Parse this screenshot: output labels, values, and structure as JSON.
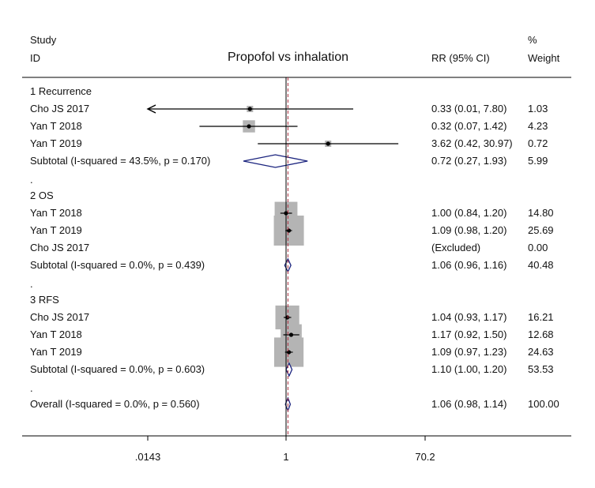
{
  "header": {
    "study_label": "Study",
    "id_label": "ID",
    "title": "Propofol vs inhalation",
    "rr_label": "RR (95% CI)",
    "weight_symbol": "%",
    "weight_label": "Weight"
  },
  "chart_data": {
    "type": "forest",
    "title": "Propofol vs inhalation",
    "scale": "log",
    "reference_line": 1,
    "xlim": [
      0.0143,
      70.2
    ],
    "xticks": [
      {
        "value": 0.0143,
        "label": ".0143"
      },
      {
        "value": 1,
        "label": "1"
      },
      {
        "value": 70.2,
        "label": "70.2"
      }
    ],
    "overall_effect": 1.06,
    "groups": [
      {
        "label": "1  Recurrence",
        "studies": [
          {
            "id": "Cho JS 2017",
            "rr": 0.33,
            "lo": 0.01,
            "hi": 7.8,
            "ci_text": "0.33 (0.01, 7.80)",
            "weight": "1.03",
            "truncated_low": true
          },
          {
            "id": "Yan T 2018",
            "rr": 0.32,
            "lo": 0.07,
            "hi": 1.42,
            "ci_text": "0.32 (0.07, 1.42)",
            "weight": "4.23"
          },
          {
            "id": "Yan T 2019",
            "rr": 3.62,
            "lo": 0.42,
            "hi": 30.97,
            "ci_text": "3.62 (0.42, 30.97)",
            "weight": "0.72"
          }
        ],
        "subtotal": {
          "label": "Subtotal  (I-squared = 43.5%, p = 0.170)",
          "rr": 0.72,
          "lo": 0.27,
          "hi": 1.93,
          "ci_text": "0.72 (0.27, 1.93)",
          "weight": "5.99"
        }
      },
      {
        "label": "2  OS",
        "studies": [
          {
            "id": "Yan T 2018",
            "rr": 1.0,
            "lo": 0.84,
            "hi": 1.2,
            "ci_text": "1.00 (0.84, 1.20)",
            "weight": "14.80"
          },
          {
            "id": "Yan T 2019",
            "rr": 1.09,
            "lo": 0.98,
            "hi": 1.2,
            "ci_text": "1.09 (0.98, 1.20)",
            "weight": "25.69"
          },
          {
            "id": "Cho JS 2017",
            "rr": null,
            "lo": null,
            "hi": null,
            "ci_text": "(Excluded)",
            "weight": "0.00"
          }
        ],
        "subtotal": {
          "label": "Subtotal  (I-squared = 0.0%, p = 0.439)",
          "rr": 1.06,
          "lo": 0.96,
          "hi": 1.16,
          "ci_text": "1.06 (0.96, 1.16)",
          "weight": "40.48"
        }
      },
      {
        "label": "3  RFS",
        "studies": [
          {
            "id": "Cho JS 2017",
            "rr": 1.04,
            "lo": 0.93,
            "hi": 1.17,
            "ci_text": "1.04 (0.93, 1.17)",
            "weight": "16.21"
          },
          {
            "id": "Yan T 2018",
            "rr": 1.17,
            "lo": 0.92,
            "hi": 1.5,
            "ci_text": "1.17 (0.92, 1.50)",
            "weight": "12.68"
          },
          {
            "id": "Yan T 2019",
            "rr": 1.09,
            "lo": 0.97,
            "hi": 1.23,
            "ci_text": "1.09 (0.97, 1.23)",
            "weight": "24.63"
          }
        ],
        "subtotal": {
          "label": "Subtotal  (I-squared = 0.0%, p = 0.603)",
          "rr": 1.1,
          "lo": 1.0,
          "hi": 1.2,
          "ci_text": "1.10 (1.00, 1.20)",
          "weight": "53.53"
        }
      }
    ],
    "overall": {
      "label": "Overall  (I-squared = 0.0%, p = 0.560)",
      "rr": 1.06,
      "lo": 0.98,
      "hi": 1.14,
      "ci_text": "1.06 (0.98, 1.14)",
      "weight": "100.00"
    },
    "separator": ".",
    "colors": {
      "weight_box": "#b4b4b4",
      "ci_line": "#000000",
      "point": "#000000",
      "diamond": "#1a237e",
      "reference_line": "#000000",
      "effect_line": "#b03040",
      "frame": "#000000"
    }
  }
}
